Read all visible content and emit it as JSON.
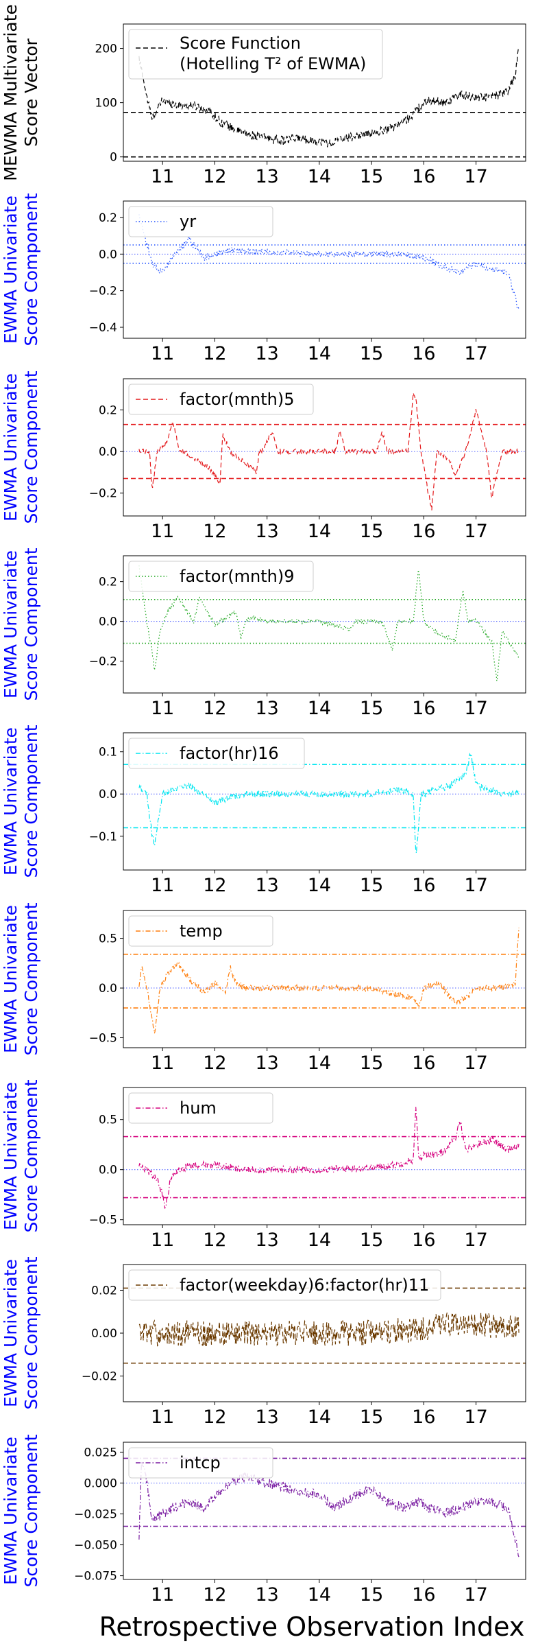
{
  "figure": {
    "xlabel": "Retrospective Observation Index",
    "xticks": [
      "11",
      "12",
      "13",
      "14",
      "15",
      "16",
      "17"
    ]
  },
  "chart_data": [
    {
      "type": "line",
      "ylabel": [
        "MEWMA Multivariate",
        "Score Vector"
      ],
      "ylabel_color": "#000000",
      "legend": [
        "Score Function",
        "(Hotelling T² of EWMA)"
      ],
      "legend_placement": "upper-left",
      "color": "#000000",
      "line_style": "dashed",
      "ylim": [
        -8,
        245
      ],
      "yticks": [
        "0",
        "100",
        "200"
      ],
      "ytick_values": [
        0,
        100,
        200
      ],
      "limits": [
        0,
        82
      ],
      "center": null,
      "noise": 8,
      "profile_x": [
        10.55,
        10.62,
        10.7,
        10.8,
        11.0,
        11.3,
        11.6,
        11.9,
        12.1,
        12.4,
        12.7,
        13.0,
        13.3,
        13.6,
        13.9,
        14.2,
        14.5,
        14.8,
        15.1,
        15.4,
        15.7,
        15.9,
        16.1,
        16.4,
        16.7,
        17.0,
        17.3,
        17.6,
        17.75,
        17.82
      ],
      "profile_y": [
        180,
        150,
        110,
        70,
        105,
        95,
        95,
        85,
        65,
        50,
        40,
        35,
        30,
        35,
        30,
        25,
        35,
        40,
        45,
        55,
        70,
        90,
        105,
        100,
        115,
        110,
        110,
        120,
        150,
        200
      ]
    },
    {
      "type": "line",
      "ylabel": [
        "EWMA Univariate",
        "Score Component"
      ],
      "ylabel_color": "#0000ff",
      "legend": [
        "yr"
      ],
      "legend_placement": "upper-left",
      "color": "#1f4fff",
      "line_style": "dotted",
      "ylim": [
        -0.46,
        0.29
      ],
      "yticks": [
        "−0.4",
        "−0.2",
        "0.0",
        "0.2"
      ],
      "ytick_values": [
        -0.4,
        -0.2,
        0.0,
        0.2
      ],
      "limits": [
        -0.05,
        0.05
      ],
      "center": 0,
      "noise": 0.018,
      "profile_x": [
        10.55,
        10.65,
        10.8,
        11.0,
        11.2,
        11.5,
        11.8,
        12.2,
        13.0,
        14.0,
        15.0,
        15.6,
        16.0,
        16.3,
        16.7,
        17.0,
        17.3,
        17.6,
        17.72,
        17.82
      ],
      "profile_y": [
        0.22,
        0.1,
        -0.05,
        -0.1,
        -0.02,
        0.08,
        -0.02,
        0.02,
        0.01,
        0.0,
        0.0,
        0.0,
        -0.02,
        -0.06,
        -0.1,
        -0.05,
        -0.08,
        -0.1,
        -0.2,
        -0.32
      ]
    },
    {
      "type": "line",
      "ylabel": [
        "EWMA Univariate",
        "Score Component"
      ],
      "ylabel_color": "#0000ff",
      "legend": [
        "factor(mnth)5"
      ],
      "legend_placement": "upper-left",
      "color": "#e41a1c",
      "line_style": "dashed",
      "ylim": [
        -0.31,
        0.35
      ],
      "yticks": [
        "−0.2",
        "0.0",
        "0.2"
      ],
      "ytick_values": [
        -0.2,
        0.0,
        0.2
      ],
      "limits": [
        -0.13,
        0.13
      ],
      "center": 0,
      "noise": 0.012,
      "profile_x": [
        10.55,
        10.75,
        10.8,
        10.9,
        11.1,
        11.2,
        11.3,
        11.4,
        11.9,
        12.1,
        12.15,
        12.3,
        12.8,
        12.85,
        12.9,
        13.1,
        13.2,
        14.3,
        14.4,
        14.5,
        15.1,
        15.2,
        15.3,
        15.7,
        15.8,
        15.85,
        15.95,
        16.05,
        16.15,
        16.25,
        16.5,
        16.6,
        16.8,
        16.9,
        17.0,
        17.2,
        17.3,
        17.5,
        17.82
      ],
      "profile_y": [
        0.0,
        0.0,
        -0.18,
        0.0,
        0.05,
        0.15,
        0.02,
        0.0,
        -0.08,
        -0.15,
        0.08,
        0.0,
        -0.1,
        0.0,
        0.0,
        0.1,
        0.0,
        0.0,
        0.1,
        0.0,
        0.0,
        0.1,
        0.0,
        0.0,
        0.28,
        0.25,
        0.0,
        -0.15,
        -0.28,
        0.0,
        -0.05,
        -0.12,
        0.0,
        0.1,
        0.2,
        0.0,
        -0.22,
        0.0,
        0.0
      ]
    },
    {
      "type": "line",
      "ylabel": [
        "EWMA Univariate",
        "Score Component"
      ],
      "ylabel_color": "#0000ff",
      "legend": [
        "factor(mnth)9"
      ],
      "legend_placement": "upper-left",
      "color": "#1aa51a",
      "line_style": "dotted",
      "ylim": [
        -0.36,
        0.33
      ],
      "yticks": [
        "−0.2",
        "0.0",
        "0.2"
      ],
      "ytick_values": [
        -0.2,
        0.0,
        0.2
      ],
      "limits": [
        -0.11,
        0.11
      ],
      "center": 0,
      "noise": 0.012,
      "profile_x": [
        10.55,
        10.6,
        10.7,
        10.8,
        10.85,
        10.95,
        11.1,
        11.3,
        11.6,
        11.7,
        12.0,
        12.4,
        12.5,
        12.6,
        12.7,
        13.0,
        14.0,
        14.6,
        14.7,
        15.2,
        15.4,
        15.5,
        15.8,
        15.9,
        16.0,
        16.2,
        16.6,
        16.75,
        16.85,
        17.0,
        17.3,
        17.4,
        17.5,
        17.82
      ],
      "profile_y": [
        0.28,
        0.18,
        0.0,
        -0.15,
        -0.25,
        -0.05,
        0.05,
        0.12,
        0.0,
        0.12,
        -0.02,
        0.05,
        -0.08,
        0.0,
        0.02,
        0.0,
        0.0,
        -0.04,
        0.0,
        0.0,
        -0.15,
        0.0,
        0.0,
        0.27,
        0.0,
        -0.05,
        -0.1,
        0.15,
        0.0,
        0.0,
        -0.1,
        -0.3,
        -0.05,
        -0.18
      ]
    },
    {
      "type": "line",
      "ylabel": [
        "EWMA Univariate",
        "Score Component"
      ],
      "ylabel_color": "#0000ff",
      "legend": [
        "factor(hr)16"
      ],
      "legend_placement": "upper-left",
      "color": "#00e6f0",
      "line_style": "dashdot",
      "ylim": [
        -0.18,
        0.145
      ],
      "yticks": [
        "−0.1",
        "0.0",
        "0.1"
      ],
      "ytick_values": [
        -0.1,
        0.0,
        0.1
      ],
      "limits": [
        -0.08,
        0.07
      ],
      "center": 0,
      "noise": 0.008,
      "profile_x": [
        10.55,
        10.7,
        10.8,
        10.85,
        11.0,
        11.5,
        11.8,
        12.0,
        12.5,
        13.0,
        14.0,
        15.0,
        15.5,
        15.8,
        15.85,
        15.95,
        16.0,
        16.5,
        16.8,
        16.9,
        17.0,
        17.5,
        17.82
      ],
      "profile_y": [
        0.02,
        0.0,
        -0.1,
        -0.12,
        0.0,
        0.02,
        0.0,
        -0.02,
        0.0,
        0.0,
        0.0,
        0.0,
        0.01,
        0.0,
        -0.15,
        0.0,
        0.0,
        0.02,
        0.05,
        0.1,
        0.02,
        0.0,
        0.0
      ]
    },
    {
      "type": "line",
      "ylabel": [
        "EWMA Univariate",
        "Score Component"
      ],
      "ylabel_color": "#0000ff",
      "legend": [
        "temp"
      ],
      "legend_placement": "upper-left",
      "color": "#ff7f0e",
      "line_style": "dashdot",
      "ylim": [
        -0.6,
        0.78
      ],
      "yticks": [
        "−0.5",
        "0.0",
        "0.5"
      ],
      "ytick_values": [
        -0.5,
        0.0,
        0.5
      ],
      "limits": [
        -0.2,
        0.34
      ],
      "center": 0,
      "noise": 0.03,
      "profile_x": [
        10.55,
        10.6,
        10.7,
        10.8,
        10.85,
        10.95,
        11.1,
        11.3,
        11.5,
        11.8,
        12.0,
        12.2,
        12.3,
        12.4,
        12.6,
        13.0,
        14.0,
        15.0,
        15.8,
        15.9,
        16.0,
        16.3,
        16.6,
        16.8,
        17.0,
        17.5,
        17.75,
        17.82
      ],
      "profile_y": [
        0.0,
        0.25,
        0.0,
        -0.3,
        -0.45,
        0.0,
        0.15,
        0.25,
        0.1,
        -0.05,
        0.05,
        -0.05,
        0.2,
        0.05,
        0.0,
        0.0,
        0.0,
        0.0,
        -0.1,
        -0.2,
        0.0,
        0.05,
        -0.15,
        -0.1,
        0.0,
        0.0,
        0.05,
        0.6
      ]
    },
    {
      "type": "line",
      "ylabel": [
        "EWMA Univariate",
        "Score Component"
      ],
      "ylabel_color": "#0000ff",
      "legend": [
        "hum"
      ],
      "legend_placement": "upper-left",
      "color": "#d6007e",
      "line_style": "dashdot",
      "ylim": [
        -0.55,
        0.82
      ],
      "yticks": [
        "−0.5",
        "0.0",
        "0.5"
      ],
      "ytick_values": [
        -0.5,
        0.0,
        0.5
      ],
      "limits": [
        -0.28,
        0.33
      ],
      "center": 0,
      "noise": 0.035,
      "profile_x": [
        10.55,
        10.7,
        10.9,
        11.0,
        11.05,
        11.15,
        11.3,
        11.6,
        12.0,
        12.5,
        13.0,
        14.0,
        15.0,
        15.5,
        15.8,
        15.85,
        15.9,
        16.0,
        16.3,
        16.6,
        16.7,
        16.8,
        17.0,
        17.3,
        17.6,
        17.82
      ],
      "profile_y": [
        0.05,
        0.0,
        -0.1,
        -0.25,
        -0.4,
        -0.1,
        0.0,
        0.05,
        0.05,
        0.0,
        0.0,
        0.0,
        0.02,
        0.05,
        0.1,
        0.65,
        0.1,
        0.15,
        0.15,
        0.3,
        0.5,
        0.2,
        0.25,
        0.3,
        0.2,
        0.25
      ]
    },
    {
      "type": "line",
      "ylabel": [
        "EWMA Univariate",
        "Score Component"
      ],
      "ylabel_color": "#0000ff",
      "legend": [
        "factor(weekday)6:factor(hr)11"
      ],
      "legend_placement": "upper-left",
      "color": "#6b3a00",
      "line_style": "dashed",
      "ylim": [
        -0.032,
        0.032
      ],
      "yticks": [
        "−0.02",
        "0.00",
        "0.02"
      ],
      "ytick_values": [
        -0.02,
        0.0,
        0.02
      ],
      "limits": [
        -0.014,
        0.021
      ],
      "center": null,
      "noise": 0.006,
      "profile_x": [
        10.55,
        11.0,
        12.0,
        13.0,
        14.0,
        15.0,
        16.0,
        16.5,
        17.0,
        17.82
      ],
      "profile_y": [
        0.0,
        0.0,
        0.0,
        0.0,
        0.0,
        0.0,
        0.002,
        0.004,
        0.004,
        0.002
      ]
    },
    {
      "type": "line",
      "ylabel": [
        "EWMA Univariate",
        "Score Component"
      ],
      "ylabel_color": "#0000ff",
      "legend": [
        "intcp"
      ],
      "legend_placement": "upper-left",
      "color": "#7b1fa2",
      "line_style": "dashdot",
      "ylim": [
        -0.078,
        0.033
      ],
      "yticks": [
        "−0.075",
        "−0.050",
        "−0.025",
        "0.000",
        "0.025"
      ],
      "ytick_values": [
        -0.075,
        -0.05,
        -0.025,
        0.0,
        0.025
      ],
      "limits": [
        -0.035,
        0.02
      ],
      "center": 0,
      "noise": 0.004,
      "profile_x": [
        10.55,
        10.6,
        10.7,
        10.8,
        11.0,
        11.2,
        11.5,
        11.8,
        12.0,
        12.3,
        12.6,
        13.0,
        13.5,
        14.0,
        14.3,
        14.7,
        15.0,
        15.3,
        15.6,
        15.9,
        16.1,
        16.4,
        16.7,
        17.0,
        17.3,
        17.6,
        17.75,
        17.82
      ],
      "profile_y": [
        -0.045,
        0.02,
        0.0,
        -0.03,
        -0.025,
        -0.02,
        -0.015,
        -0.02,
        -0.01,
        0.0,
        0.005,
        0.0,
        -0.005,
        -0.01,
        -0.02,
        -0.01,
        -0.005,
        -0.015,
        -0.02,
        -0.015,
        -0.02,
        -0.025,
        -0.02,
        -0.015,
        -0.015,
        -0.02,
        -0.045,
        -0.06
      ]
    }
  ]
}
